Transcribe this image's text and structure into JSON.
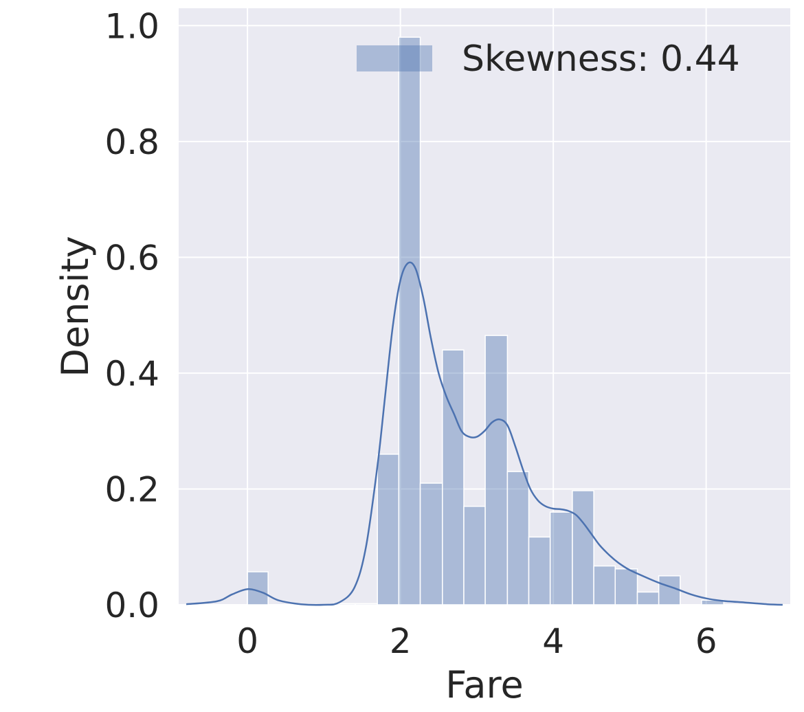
{
  "chart_data": {
    "type": "bar",
    "xlabel": "Fare",
    "ylabel": "Density",
    "xlim": [
      -0.9,
      7.1
    ],
    "ylim": [
      0,
      1.03
    ],
    "xticks": [
      "0",
      "2",
      "4",
      "6"
    ],
    "xtick_values": [
      0,
      2,
      4,
      6
    ],
    "yticks": [
      "0.0",
      "0.2",
      "0.4",
      "0.6",
      "0.8",
      "1.0"
    ],
    "ytick_values": [
      0,
      0.2,
      0.4,
      0.6,
      0.8,
      1.0
    ],
    "grid": true,
    "legend_position": "top-right",
    "legend": [
      "Skewness: 0.44"
    ],
    "bars": [
      {
        "x0": 0.0,
        "x1": 0.27,
        "value": 0.057
      },
      {
        "x0": 1.13,
        "x1": 1.41,
        "value": 0.002
      },
      {
        "x0": 1.41,
        "x1": 1.7,
        "value": 0.002
      },
      {
        "x0": 1.7,
        "x1": 1.98,
        "value": 0.26
      },
      {
        "x0": 1.98,
        "x1": 2.26,
        "value": 0.98
      },
      {
        "x0": 2.26,
        "x1": 2.55,
        "value": 0.21
      },
      {
        "x0": 2.55,
        "x1": 2.83,
        "value": 0.44
      },
      {
        "x0": 2.83,
        "x1": 3.11,
        "value": 0.17
      },
      {
        "x0": 3.11,
        "x1": 3.4,
        "value": 0.465
      },
      {
        "x0": 3.4,
        "x1": 3.68,
        "value": 0.23
      },
      {
        "x0": 3.68,
        "x1": 3.96,
        "value": 0.117
      },
      {
        "x0": 3.96,
        "x1": 4.25,
        "value": 0.16
      },
      {
        "x0": 4.25,
        "x1": 4.53,
        "value": 0.197
      },
      {
        "x0": 4.53,
        "x1": 4.81,
        "value": 0.067
      },
      {
        "x0": 4.81,
        "x1": 5.1,
        "value": 0.062
      },
      {
        "x0": 5.1,
        "x1": 5.38,
        "value": 0.022
      },
      {
        "x0": 5.38,
        "x1": 5.66,
        "value": 0.05
      },
      {
        "x0": 5.94,
        "x1": 6.23,
        "value": 0.008
      }
    ],
    "kde": {
      "x": [
        -0.8,
        -0.4,
        -0.2,
        0.0,
        0.2,
        0.4,
        0.7,
        1.0,
        1.2,
        1.4,
        1.55,
        1.7,
        1.8,
        1.9,
        2.0,
        2.1,
        2.2,
        2.3,
        2.4,
        2.5,
        2.6,
        2.7,
        2.8,
        2.9,
        3.0,
        3.1,
        3.2,
        3.3,
        3.4,
        3.5,
        3.6,
        3.7,
        3.8,
        3.9,
        4.0,
        4.1,
        4.2,
        4.3,
        4.4,
        4.5,
        4.6,
        4.7,
        4.8,
        4.9,
        5.0,
        5.2,
        5.4,
        5.6,
        5.8,
        6.0,
        6.2,
        6.5,
        6.8,
        7.0
      ],
      "y": [
        0.001,
        0.006,
        0.018,
        0.027,
        0.021,
        0.008,
        0.001,
        0.0,
        0.004,
        0.03,
        0.1,
        0.24,
        0.36,
        0.48,
        0.56,
        0.59,
        0.58,
        0.53,
        0.46,
        0.4,
        0.36,
        0.33,
        0.3,
        0.29,
        0.29,
        0.3,
        0.315,
        0.32,
        0.31,
        0.275,
        0.235,
        0.2,
        0.18,
        0.17,
        0.166,
        0.165,
        0.162,
        0.155,
        0.14,
        0.122,
        0.104,
        0.09,
        0.078,
        0.068,
        0.06,
        0.048,
        0.037,
        0.028,
        0.018,
        0.011,
        0.007,
        0.004,
        0.001,
        0.0
      ]
    },
    "colors": {
      "bar": "#4c72b0",
      "line": "#4c72b0",
      "background": "#eaeaf2",
      "grid": "#ffffff"
    }
  }
}
